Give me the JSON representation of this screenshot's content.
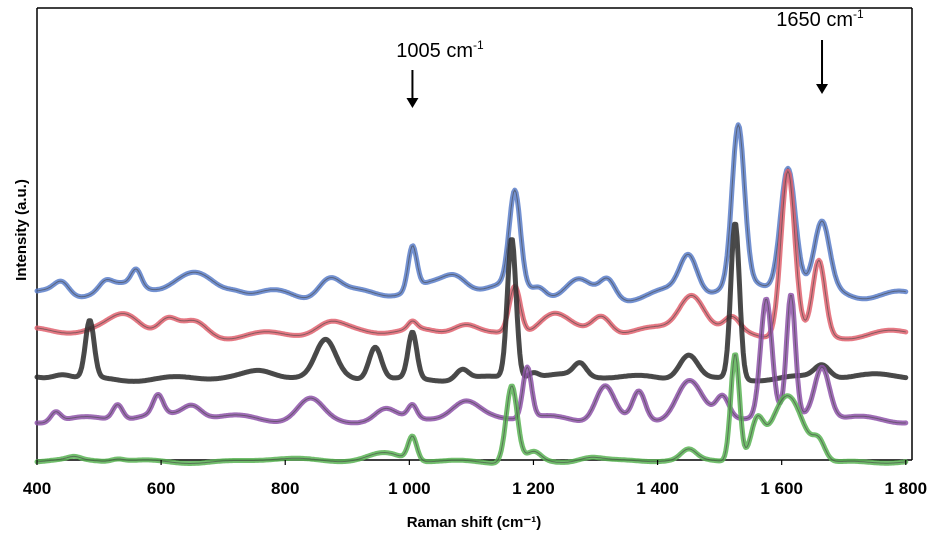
{
  "chart_data": {
    "type": "line",
    "title": "",
    "xlabel": "Raman shift (cm⁻¹)",
    "ylabel": "Intensity (a.u.)",
    "xlim": [
      400,
      1810
    ],
    "xticks": [
      "400",
      "600",
      "800",
      "1 000",
      "1 200",
      "1 400",
      "1 600",
      "1 800"
    ],
    "xtick_values": [
      400,
      600,
      800,
      1000,
      1200,
      1400,
      1600,
      1800
    ],
    "grid": false,
    "legend": "none",
    "annotations": [
      {
        "text": "1005 cm",
        "sup": "-1",
        "x": 1005
      },
      {
        "text": "1650 cm",
        "sup": "-1",
        "x": 1665
      }
    ],
    "series": [
      {
        "color": "#5b7ec9",
        "baseline": 0.88,
        "noise": 0.08,
        "peaks": [
          [
            440,
            0.1,
            12
          ],
          [
            510,
            0.06,
            10
          ],
          [
            560,
            0.13,
            8
          ],
          [
            650,
            0.08,
            30
          ],
          [
            720,
            0.04,
            15
          ],
          [
            870,
            0.16,
            18
          ],
          [
            1005,
            0.34,
            7
          ],
          [
            1075,
            0.1,
            18
          ],
          [
            1170,
            0.74,
            9
          ],
          [
            1210,
            0.06,
            10
          ],
          [
            1270,
            0.1,
            18
          ],
          [
            1320,
            0.14,
            12
          ],
          [
            1450,
            0.3,
            14
          ],
          [
            1530,
            1.24,
            10
          ],
          [
            1610,
            0.97,
            12
          ],
          [
            1665,
            0.5,
            12
          ]
        ]
      },
      {
        "color": "#e0616e",
        "baseline": 0.55,
        "noise": 0.05,
        "peaks": [
          [
            545,
            0.14,
            25
          ],
          [
            610,
            0.12,
            15
          ],
          [
            655,
            0.1,
            20
          ],
          [
            870,
            0.06,
            20
          ],
          [
            1005,
            0.06,
            7
          ],
          [
            1090,
            0.1,
            20
          ],
          [
            1170,
            0.38,
            9
          ],
          [
            1230,
            0.18,
            25
          ],
          [
            1310,
            0.14,
            15
          ],
          [
            1455,
            0.3,
            20
          ],
          [
            1520,
            0.1,
            12
          ],
          [
            1610,
            1.3,
            11
          ],
          [
            1660,
            0.58,
            10
          ]
        ]
      },
      {
        "color": "#2a2a2a",
        "baseline": 0.2,
        "noise": 0.03,
        "peaks": [
          [
            440,
            0.04,
            15
          ],
          [
            485,
            0.45,
            7
          ],
          [
            760,
            0.03,
            20
          ],
          [
            865,
            0.28,
            16
          ],
          [
            945,
            0.26,
            10
          ],
          [
            1005,
            0.36,
            7
          ],
          [
            1085,
            0.08,
            10
          ],
          [
            1165,
            1.1,
            7
          ],
          [
            1200,
            0.04,
            8
          ],
          [
            1275,
            0.1,
            10
          ],
          [
            1450,
            0.2,
            15
          ],
          [
            1525,
            1.23,
            7
          ],
          [
            1665,
            0.1,
            12
          ]
        ]
      },
      {
        "color": "#8e53a9",
        "baseline": -0.12,
        "noise": 0.04,
        "peaks": [
          [
            430,
            0.08,
            8
          ],
          [
            530,
            0.12,
            8
          ],
          [
            595,
            0.15,
            8
          ],
          [
            650,
            0.1,
            15
          ],
          [
            840,
            0.16,
            20
          ],
          [
            960,
            0.07,
            15
          ],
          [
            1005,
            0.1,
            7
          ],
          [
            1090,
            0.1,
            20
          ],
          [
            1190,
            0.4,
            7
          ],
          [
            1315,
            0.28,
            15
          ],
          [
            1370,
            0.22,
            10
          ],
          [
            1450,
            0.3,
            20
          ],
          [
            1505,
            0.16,
            10
          ],
          [
            1575,
            0.92,
            9
          ],
          [
            1615,
            0.94,
            7
          ],
          [
            1665,
            0.41,
            12
          ]
        ]
      },
      {
        "color": "#59b354",
        "baseline": -0.46,
        "noise": 0.02,
        "peaks": [
          [
            460,
            0.02,
            10
          ],
          [
            530,
            0.02,
            10
          ],
          [
            780,
            0.03,
            40
          ],
          [
            960,
            0.05,
            25
          ],
          [
            1005,
            0.19,
            7
          ],
          [
            1165,
            0.61,
            9
          ],
          [
            1200,
            0.08,
            12
          ],
          [
            1290,
            0.04,
            20
          ],
          [
            1450,
            0.08,
            12
          ],
          [
            1525,
            0.85,
            7
          ],
          [
            1560,
            0.28,
            10
          ],
          [
            1610,
            0.52,
            25
          ],
          [
            1660,
            0.14,
            10
          ]
        ]
      }
    ]
  }
}
